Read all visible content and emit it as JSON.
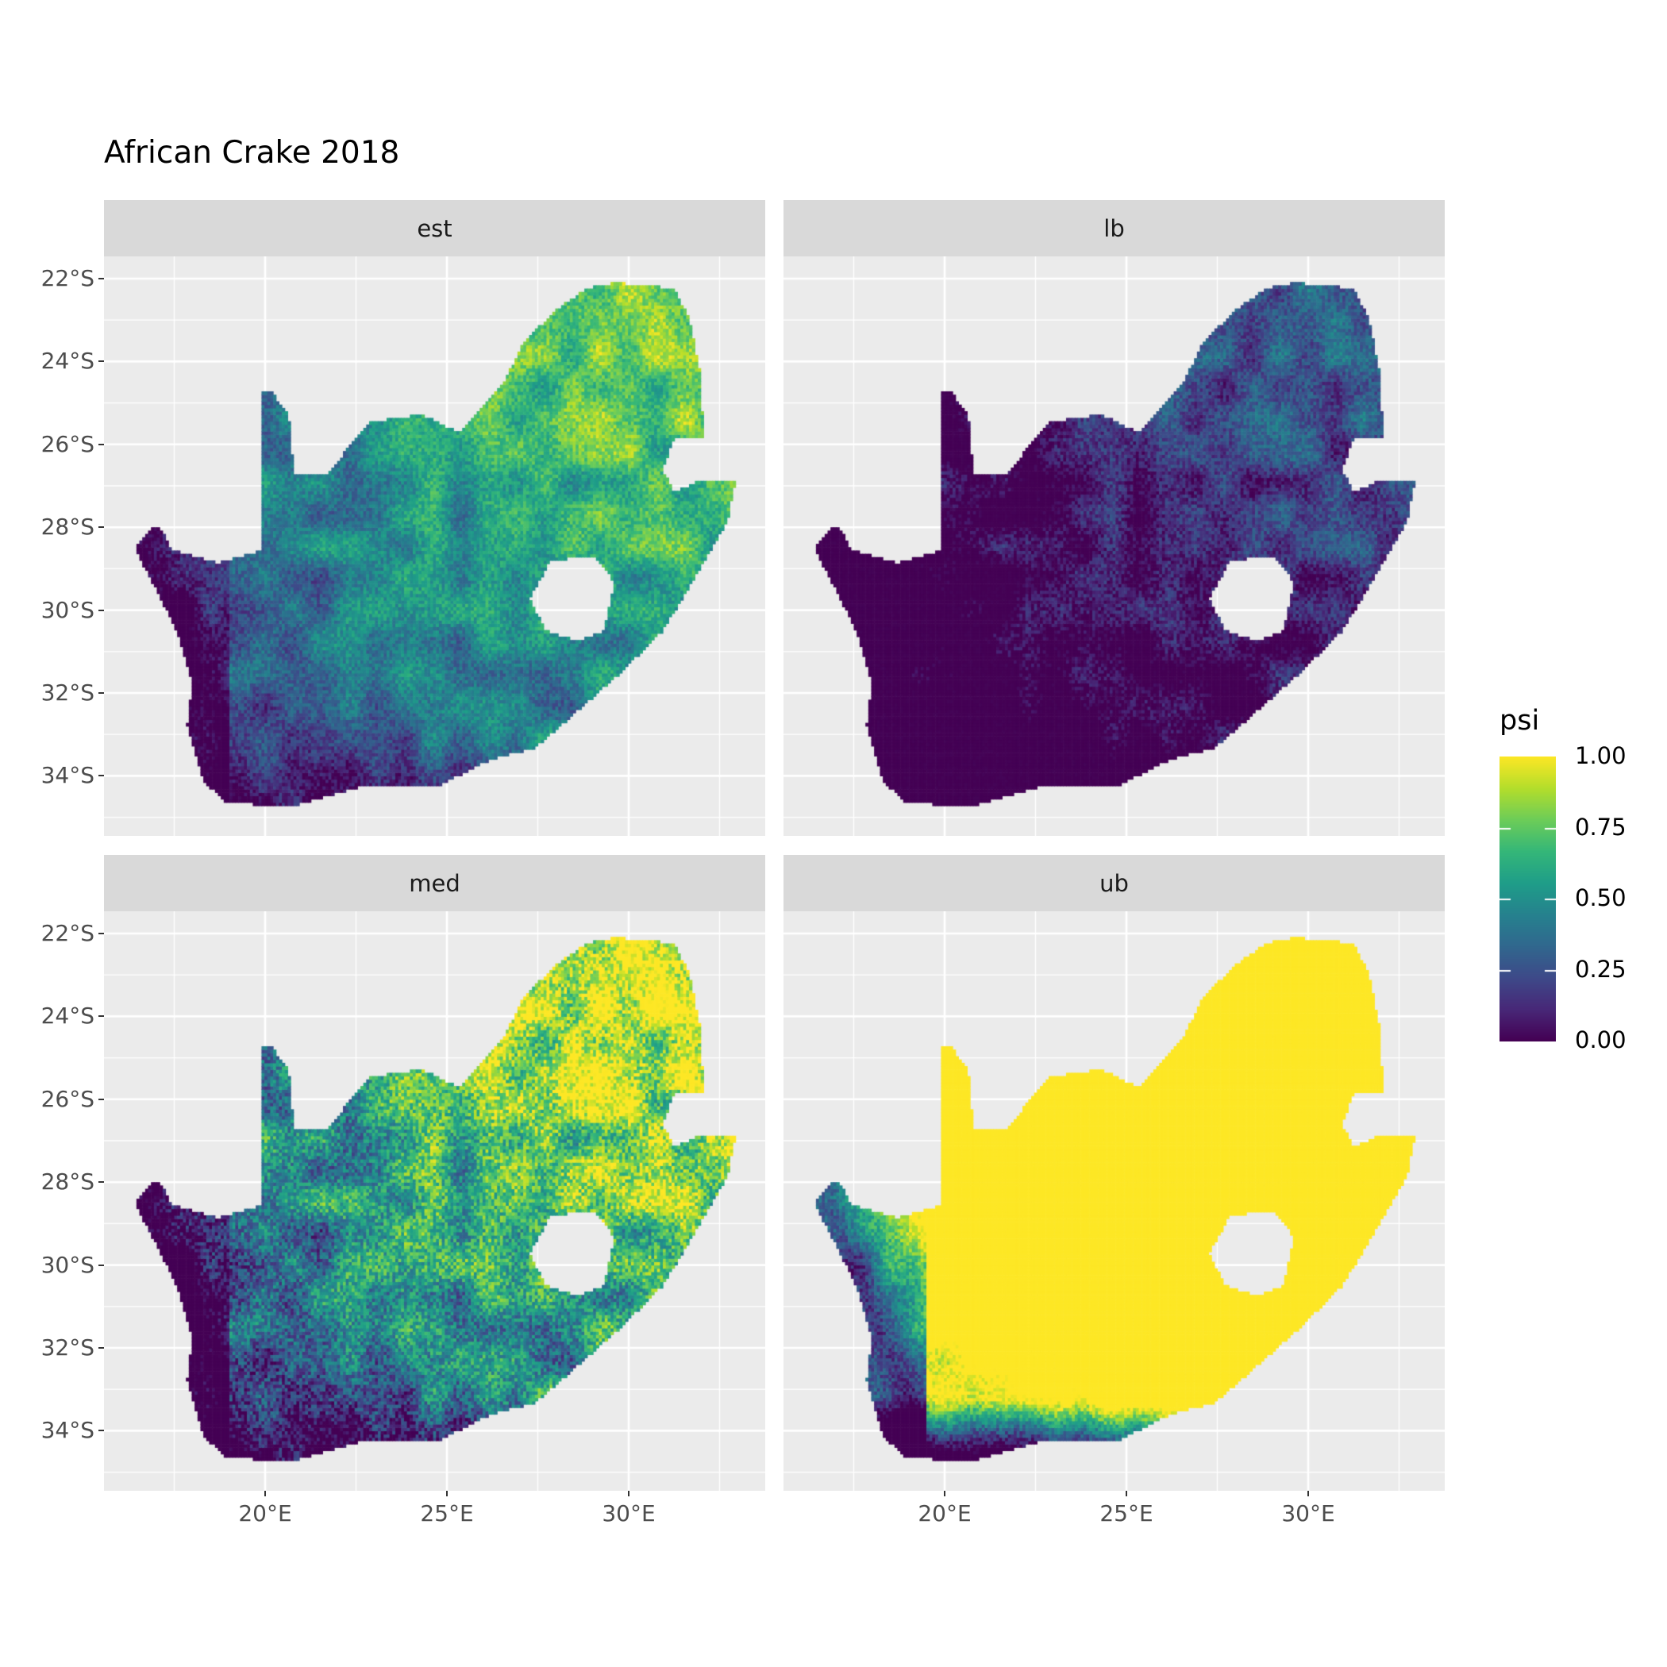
{
  "chart_data": {
    "type": "heatmap",
    "title": "African Crake 2018",
    "facets": [
      "est",
      "lb",
      "med",
      "ub"
    ],
    "x_ticks": [
      "20°E",
      "25°E",
      "30°E"
    ],
    "x_tick_values": [
      20,
      25,
      30
    ],
    "y_ticks": [
      "22°S",
      "24°S",
      "26°S",
      "28°S",
      "30°S",
      "32°S",
      "34°S"
    ],
    "y_tick_values": [
      -22,
      -24,
      -26,
      -28,
      -30,
      -32,
      -34
    ],
    "xlim": [
      15.6,
      33.8
    ],
    "ylim": [
      -35.5,
      -21.5
    ],
    "grid": true,
    "legend": {
      "title": "psi",
      "position": "right",
      "colormap": "viridis",
      "range": [
        0,
        1
      ],
      "labels": [
        "1.00",
        "0.75",
        "0.50",
        "0.25",
        "0.00"
      ],
      "label_values": [
        1,
        0.75,
        0.5,
        0.25,
        0
      ]
    },
    "colors": {
      "low": "#440154",
      "mid": "#21908c",
      "high": "#fde725",
      "panel_bg": "#ebebeb",
      "strip_bg": "#d9d9d9"
    }
  }
}
